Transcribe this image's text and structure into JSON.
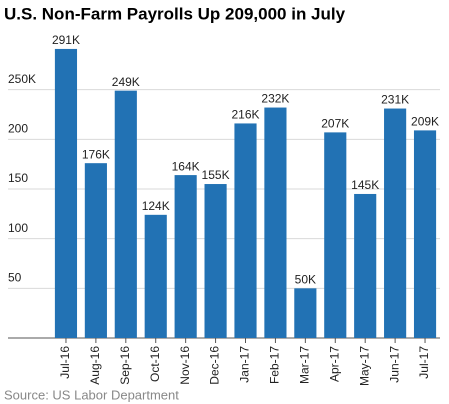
{
  "chart_data": {
    "type": "bar",
    "title": "U.S. Non-Farm Payrolls Up 209,000 in July",
    "categories": [
      "Jul-16",
      "Aug-16",
      "Sep-16",
      "Oct-16",
      "Nov-16",
      "Dec-16",
      "Jan-17",
      "Feb-17",
      "Mar-17",
      "Apr-17",
      "May-17",
      "Jun-17",
      "Jul-17"
    ],
    "values": [
      291,
      176,
      249,
      124,
      164,
      155,
      216,
      232,
      50,
      207,
      145,
      231,
      209
    ],
    "value_labels": [
      "291K",
      "176K",
      "249K",
      "124K",
      "164K",
      "155K",
      "216K",
      "232K",
      "50K",
      "207K",
      "145K",
      "231K",
      "209K"
    ],
    "color": "#2272b4",
    "ylim": [
      0,
      300
    ],
    "yticks": [
      {
        "value": 250,
        "label": "250K"
      },
      200,
      150,
      100,
      50
    ],
    "grid": true,
    "source": "Source: US Labor Department"
  }
}
